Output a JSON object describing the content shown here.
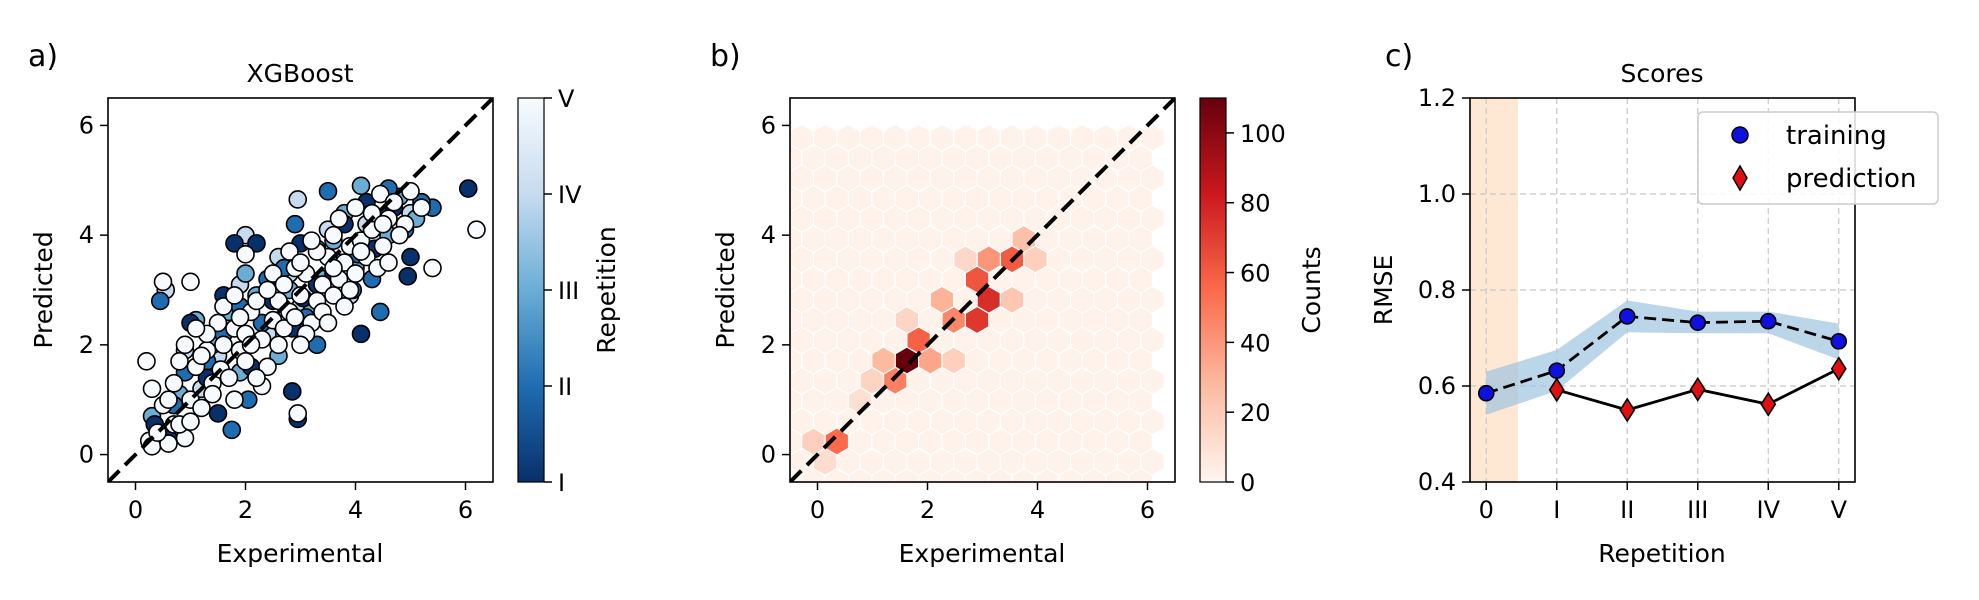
{
  "colors": {
    "blues_dark": "#08306b",
    "blues_light": "#f7fbff",
    "reds_dark": "#67000d",
    "reds_light": "#fff5f0",
    "band_blue": "#9ec3e0",
    "band_orange": "#fde0c4",
    "training_marker": "#1010e0",
    "prediction_marker": "#e01010"
  },
  "panels": [
    "a)",
    "b)",
    "c)"
  ],
  "chart_data": [
    {
      "type": "scatter",
      "title": "XGBoost",
      "xlabel": "Experimental",
      "ylabel": "Predicted",
      "xlim": [
        -0.5,
        6.5
      ],
      "ylim": [
        -0.5,
        6.5
      ],
      "xticks": [
        0,
        2,
        4,
        6
      ],
      "yticks": [
        0,
        2,
        4,
        6
      ],
      "diagonal": "y = x (dashed)",
      "colorbar": {
        "label": "Repetition",
        "colormap": "Blues_r",
        "ticks": [
          "I",
          "II",
          "III",
          "IV",
          "V"
        ]
      },
      "point_count_approx": 500,
      "series": [
        {
          "repetition": "I",
          "points": [
            [
              6.05,
              4.85
            ],
            [
              3.0,
              3.85
            ],
            [
              2.2,
              3.85
            ],
            [
              1.8,
              3.85
            ],
            [
              4.35,
              3.75
            ],
            [
              5.0,
              3.6
            ],
            [
              3.05,
              2.85
            ],
            [
              4.95,
              3.25
            ],
            [
              2.85,
              2.3
            ],
            [
              4.1,
              2.2
            ],
            [
              1.0,
              2.4
            ],
            [
              2.85,
              1.15
            ],
            [
              2.95,
              0.65
            ],
            [
              1.5,
              0.75
            ],
            [
              0.6,
              0.3
            ],
            [
              0.35,
              0.55
            ],
            [
              2.1,
              1.6
            ],
            [
              3.8,
              4.2
            ],
            [
              3.3,
              3.1
            ],
            [
              1.6,
              2.9
            ],
            [
              2.5,
              2.8
            ],
            [
              3.6,
              3.3
            ],
            [
              4.7,
              4.5
            ],
            [
              4.2,
              4.6
            ],
            [
              1.3,
              1.4
            ]
          ]
        },
        {
          "repetition": "II",
          "points": [
            [
              0.45,
              2.8
            ],
            [
              5.4,
              4.5
            ],
            [
              4.6,
              4.85
            ],
            [
              4.05,
              3.65
            ],
            [
              4.55,
              4.35
            ],
            [
              2.4,
              3.2
            ],
            [
              3.95,
              3.0
            ],
            [
              4.45,
              2.6
            ],
            [
              2.05,
              1.0
            ],
            [
              1.75,
              0.45
            ],
            [
              1.3,
              1.7
            ],
            [
              0.7,
              0.9
            ],
            [
              3.5,
              4.8
            ],
            [
              2.9,
              4.2
            ],
            [
              3.3,
              2.0
            ],
            [
              2.3,
              2.4
            ],
            [
              1.6,
              2.2
            ],
            [
              4.9,
              4.1
            ],
            [
              4.3,
              3.2
            ],
            [
              2.7,
              3.4
            ],
            [
              0.9,
              1.5
            ],
            [
              3.1,
              2.5
            ],
            [
              1.9,
              2.7
            ],
            [
              5.2,
              4.6
            ]
          ]
        },
        {
          "repetition": "III",
          "points": [
            [
              1.1,
              2.45
            ],
            [
              4.1,
              4.9
            ],
            [
              5.1,
              4.3
            ],
            [
              3.3,
              3.75
            ],
            [
              2.0,
              3.3
            ],
            [
              3.6,
              3.9
            ],
            [
              0.3,
              0.7
            ],
            [
              1.9,
              1.5
            ],
            [
              2.6,
              1.8
            ],
            [
              3.2,
              2.6
            ],
            [
              4.0,
              3.4
            ],
            [
              1.4,
              2.0
            ],
            [
              2.8,
              3.0
            ],
            [
              4.6,
              4.0
            ],
            [
              3.8,
              4.4
            ],
            [
              2.2,
              2.9
            ],
            [
              0.8,
              1.1
            ],
            [
              1.7,
              2.6
            ],
            [
              3.4,
              3.2
            ],
            [
              4.8,
              4.7
            ]
          ]
        },
        {
          "repetition": "IV",
          "points": [
            [
              0.55,
              3.0
            ],
            [
              2.95,
              4.65
            ],
            [
              2.0,
              4.0
            ],
            [
              3.7,
              3.5
            ],
            [
              2.8,
              3.3
            ],
            [
              1.6,
              2.4
            ],
            [
              0.9,
              1.9
            ],
            [
              4.2,
              4.2
            ],
            [
              3.5,
              4.1
            ],
            [
              2.4,
              2.2
            ],
            [
              1.2,
              1.2
            ],
            [
              3.0,
              2.7
            ],
            [
              4.4,
              3.9
            ],
            [
              1.9,
              3.1
            ],
            [
              5.0,
              4.4
            ],
            [
              2.6,
              3.6
            ],
            [
              3.9,
              2.9
            ],
            [
              1.5,
              1.8
            ]
          ]
        },
        {
          "repetition": "V",
          "points": [
            [
              6.2,
              4.1
            ],
            [
              5.4,
              3.4
            ],
            [
              5.0,
              4.8
            ],
            [
              4.45,
              4.75
            ],
            [
              4.9,
              4.2
            ],
            [
              1.0,
              3.15
            ],
            [
              0.5,
              3.15
            ],
            [
              2.0,
              3.65
            ],
            [
              2.95,
              0.75
            ],
            [
              2.3,
              1.25
            ],
            [
              1.8,
              1.0
            ],
            [
              0.7,
              0.55
            ],
            [
              0.25,
              0.25
            ],
            [
              0.3,
              0.15
            ],
            [
              0.6,
              0.2
            ],
            [
              0.9,
              0.3
            ],
            [
              0.8,
              0.55
            ],
            [
              0.2,
              1.7
            ],
            [
              0.3,
              1.2
            ],
            [
              0.5,
              0.9
            ],
            [
              1.0,
              1.0
            ],
            [
              1.2,
              0.85
            ],
            [
              1.4,
              1.3
            ],
            [
              1.55,
              1.55
            ],
            [
              1.3,
              1.9
            ],
            [
              1.6,
              2.0
            ],
            [
              1.8,
              2.3
            ],
            [
              2.0,
              2.2
            ],
            [
              2.1,
              2.6
            ],
            [
              2.3,
              2.1
            ],
            [
              2.5,
              2.45
            ],
            [
              2.6,
              2.8
            ],
            [
              2.7,
              2.3
            ],
            [
              2.8,
              2.6
            ],
            [
              3.0,
              2.9
            ],
            [
              3.1,
              3.3
            ],
            [
              3.2,
              2.4
            ],
            [
              3.3,
              2.8
            ],
            [
              3.4,
              3.1
            ],
            [
              3.5,
              3.6
            ],
            [
              3.6,
              2.9
            ],
            [
              3.7,
              3.2
            ],
            [
              3.8,
              3.5
            ],
            [
              3.9,
              3.8
            ],
            [
              4.0,
              3.3
            ],
            [
              4.1,
              3.9
            ],
            [
              4.2,
              3.6
            ],
            [
              4.3,
              4.1
            ],
            [
              4.5,
              3.8
            ],
            [
              4.6,
              4.3
            ],
            [
              4.8,
              4.0
            ],
            [
              1.1,
              1.6
            ],
            [
              1.5,
              2.4
            ],
            [
              1.9,
              1.9
            ],
            [
              2.2,
              2.8
            ],
            [
              2.4,
              3.0
            ],
            [
              2.6,
              2.0
            ],
            [
              2.9,
              3.4
            ],
            [
              3.1,
              2.2
            ],
            [
              3.3,
              3.7
            ],
            [
              3.6,
              4.0
            ],
            [
              0.7,
              1.3
            ],
            [
              1.3,
              2.2
            ],
            [
              1.7,
              1.4
            ],
            [
              2.0,
              1.7
            ],
            [
              2.5,
              3.3
            ],
            [
              3.0,
              2.0
            ],
            [
              3.4,
              2.6
            ],
            [
              3.7,
              4.3
            ],
            [
              4.0,
              4.5
            ],
            [
              4.4,
              3.4
            ],
            [
              4.7,
              4.6
            ],
            [
              0.4,
              0.4
            ],
            [
              1.0,
              0.6
            ],
            [
              1.2,
              1.8
            ],
            [
              1.4,
              1.1
            ],
            [
              2.1,
              2.0
            ],
            [
              2.7,
              3.1
            ],
            [
              3.2,
              3.9
            ],
            [
              3.9,
              3.0
            ],
            [
              4.3,
              4.4
            ],
            [
              5.2,
              4.5
            ],
            [
              0.6,
              1.0
            ],
            [
              0.9,
              2.0
            ],
            [
              1.6,
              2.7
            ],
            [
              2.4,
              1.6
            ],
            [
              2.8,
              3.7
            ],
            [
              3.5,
              2.4
            ],
            [
              4.1,
              3.7
            ],
            [
              4.6,
              3.5
            ],
            [
              1.1,
              2.3
            ],
            [
              1.8,
              2.9
            ],
            [
              2.2,
              1.4
            ],
            [
              3.0,
              3.5
            ],
            [
              3.8,
              2.7
            ],
            [
              4.5,
              4.2
            ],
            [
              0.8,
              1.7
            ],
            [
              1.9,
              2.5
            ],
            [
              2.9,
              2.5
            ],
            [
              3.6,
              3.4
            ]
          ]
        }
      ]
    },
    {
      "type": "heatmap",
      "subtype": "hexbin",
      "xlabel": "Experimental",
      "ylabel": "Predicted",
      "xlim": [
        -0.5,
        6.5
      ],
      "ylim": [
        -0.5,
        6.5
      ],
      "xticks": [
        0,
        2,
        4,
        6
      ],
      "yticks": [
        0,
        2,
        4,
        6
      ],
      "diagonal": "y = x (dashed)",
      "colorbar": {
        "label": "Counts",
        "colormap": "Reds",
        "range": [
          0,
          110
        ],
        "ticks": [
          0,
          20,
          40,
          60,
          80,
          100
        ]
      },
      "cells": [
        {
          "x": 1.6,
          "y": 1.7,
          "count": 110
        },
        {
          "x": 3.2,
          "y": 3.0,
          "count": 75
        },
        {
          "x": 2.9,
          "y": 2.6,
          "count": 72
        },
        {
          "x": 2.05,
          "y": 2.1,
          "count": 70
        },
        {
          "x": 2.8,
          "y": 3.05,
          "count": 62
        },
        {
          "x": 3.45,
          "y": 3.45,
          "count": 60
        },
        {
          "x": 1.85,
          "y": 1.85,
          "count": 58
        },
        {
          "x": 2.55,
          "y": 2.55,
          "count": 55
        },
        {
          "x": 0.4,
          "y": 0.35,
          "count": 55
        },
        {
          "x": 1.35,
          "y": 1.25,
          "count": 48
        },
        {
          "x": 2.3,
          "y": 2.4,
          "count": 45
        },
        {
          "x": 2.0,
          "y": 1.65,
          "count": 35
        },
        {
          "x": 3.05,
          "y": 3.45,
          "count": 40
        },
        {
          "x": 2.2,
          "y": 2.75,
          "count": 30
        },
        {
          "x": 1.3,
          "y": 1.7,
          "count": 28
        },
        {
          "x": 3.8,
          "y": 3.85,
          "count": 25
        },
        {
          "x": 3.5,
          "y": 3.0,
          "count": 22
        },
        {
          "x": 2.4,
          "y": 1.85,
          "count": 18
        },
        {
          "x": 1.6,
          "y": 2.3,
          "count": 15
        },
        {
          "x": 4.05,
          "y": 3.45,
          "count": 18
        },
        {
          "x": 2.65,
          "y": 3.45,
          "count": 14
        },
        {
          "x": 0.0,
          "y": 0.35,
          "count": 18
        },
        {
          "x": 0.2,
          "y": 0.0,
          "count": 12
        },
        {
          "x": 1.05,
          "y": 1.2,
          "count": 16
        },
        {
          "x": 0.8,
          "y": 0.75,
          "count": 10
        }
      ]
    },
    {
      "type": "line",
      "title": "Scores",
      "xlabel": "Repetition",
      "ylabel": "RMSE",
      "categories": [
        "0",
        "I",
        "II",
        "III",
        "IV",
        "V"
      ],
      "ylim": [
        0.4,
        1.2
      ],
      "yticks": [
        "0.4",
        "0.6",
        "0.8",
        "1.0",
        "1.2"
      ],
      "grid": true,
      "legend": {
        "placement": "top-right",
        "entries": [
          "training",
          "prediction"
        ]
      },
      "highlight_category": "0",
      "series": [
        {
          "name": "training",
          "style": "dashed",
          "marker": "circle",
          "values": [
            0.585,
            0.632,
            0.745,
            0.732,
            0.735,
            0.693
          ],
          "band_low": [
            0.54,
            0.59,
            0.712,
            0.71,
            0.71,
            0.655
          ],
          "band_high": [
            0.63,
            0.675,
            0.778,
            0.755,
            0.755,
            0.73
          ]
        },
        {
          "name": "prediction",
          "style": "solid",
          "marker": "diamond",
          "values": [
            null,
            0.592,
            0.55,
            0.593,
            0.562,
            0.636
          ]
        }
      ]
    }
  ]
}
